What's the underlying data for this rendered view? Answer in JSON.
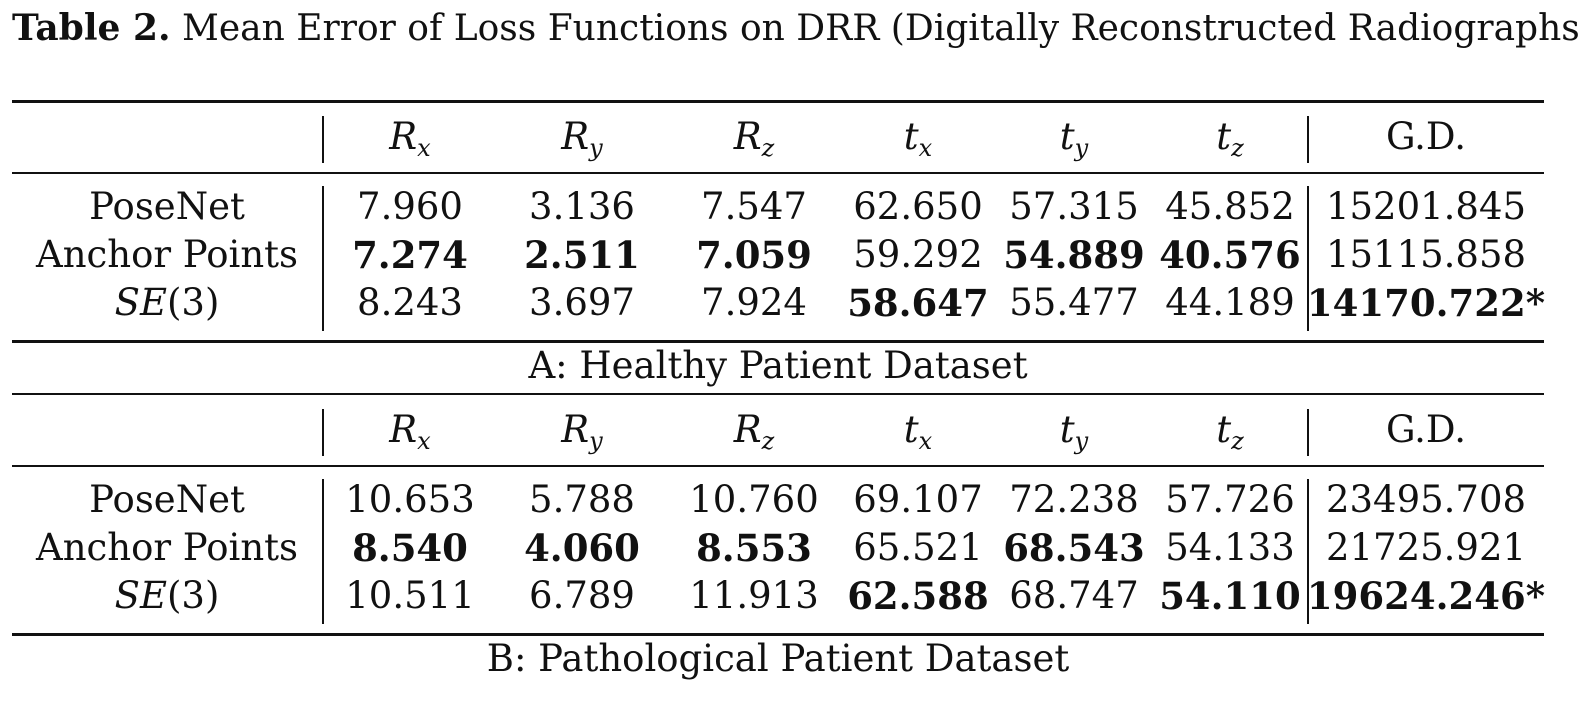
{
  "caption": {
    "label": "Table 2.",
    "text": "Mean Error of Loss Functions on DRR (Digitally Reconstructed Radiographs)"
  },
  "headers": {
    "rx": {
      "base": "R",
      "sub": "x"
    },
    "ry": {
      "base": "R",
      "sub": "y"
    },
    "rz": {
      "base": "R",
      "sub": "z"
    },
    "tx": {
      "base": "t",
      "sub": "x"
    },
    "ty": {
      "base": "t",
      "sub": "y"
    },
    "tz": {
      "base": "t",
      "sub": "z"
    },
    "gd": "G.D."
  },
  "methods": {
    "posenet": "PoseNet",
    "anchor": "Anchor Points",
    "se3_italic": "SE",
    "se3_rest": "(3)"
  },
  "sections": [
    {
      "label": "A: Healthy Patient Dataset",
      "rows": [
        {
          "values": [
            "7.960",
            "3.136",
            "7.547",
            "62.650",
            "57.315",
            "45.852",
            "15201.845"
          ]
        },
        {
          "values": [
            "7.274",
            "2.511",
            "7.059",
            "59.292",
            "54.889",
            "40.576",
            "15115.858"
          ]
        },
        {
          "values": [
            "8.243",
            "3.697",
            "7.924",
            "58.647",
            "55.477",
            "44.189",
            "14170.722*"
          ]
        }
      ]
    },
    {
      "label": "B: Pathological Patient Dataset",
      "rows": [
        {
          "values": [
            "10.653",
            "5.788",
            "10.760",
            "69.107",
            "72.238",
            "57.726",
            "23495.708"
          ]
        },
        {
          "values": [
            "8.540",
            "4.060",
            "8.553",
            "65.521",
            "68.543",
            "54.133",
            "21725.921"
          ]
        },
        {
          "values": [
            "10.511",
            "6.789",
            "11.913",
            "62.588",
            "68.747",
            "54.110",
            "19624.246*"
          ]
        }
      ]
    }
  ]
}
